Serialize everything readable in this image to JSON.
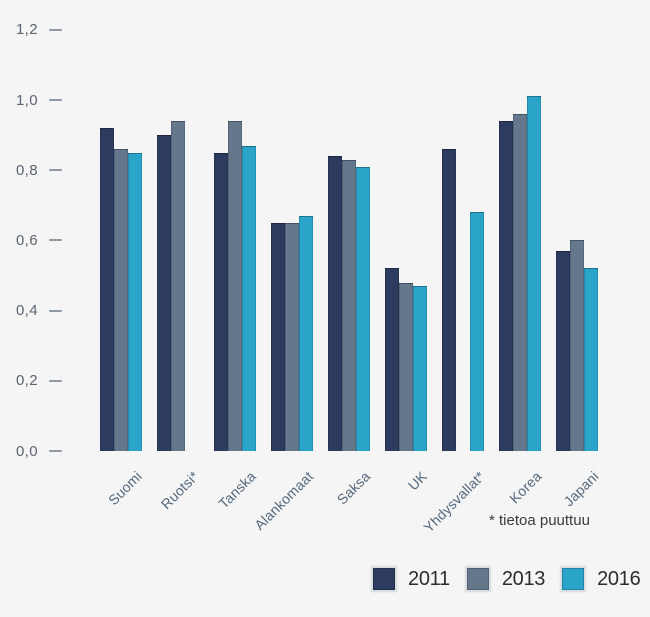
{
  "chart_data": {
    "type": "bar",
    "title": "",
    "categories": [
      "Suomi",
      "Ruotsi*",
      "Tanska",
      "Alankomaat",
      "Saksa",
      "UK",
      "Yhdysvallat*",
      "Korea",
      "Japani"
    ],
    "series": [
      {
        "name": "2011",
        "color": "#2d3b5e",
        "values": [
          0.92,
          0.9,
          0.85,
          0.65,
          0.84,
          0.52,
          0.86,
          0.94,
          0.57
        ]
      },
      {
        "name": "2013",
        "color": "#64778b",
        "values": [
          0.86,
          0.94,
          0.94,
          0.65,
          0.83,
          0.48,
          null,
          0.96,
          0.6
        ]
      },
      {
        "name": "2016",
        "color": "#2aa4c9",
        "values": [
          0.85,
          null,
          0.87,
          0.67,
          0.81,
          0.47,
          0.68,
          1.01,
          0.52
        ]
      }
    ],
    "xlabel": "",
    "ylabel": "",
    "ylim": [
      0,
      1.2
    ],
    "yticks": [
      0,
      0.2,
      0.4,
      0.6,
      0.8,
      1.0,
      1.2
    ],
    "ytick_labels": [
      "0,0",
      "0,2",
      "0,4",
      "0,6",
      "0,8",
      "1,0",
      "1,2"
    ],
    "grid": false,
    "legend_position": "bottom-right",
    "footnote": "* tietoa puuttuu"
  },
  "colors": {
    "background": "#f5f5f6",
    "ytick_text": "#5b6570",
    "tick_dash": "#8f99a3",
    "xlabel_text": "#53687a",
    "footnote_text": "#3b3b3b",
    "legend_text": "#2d2d2d"
  }
}
